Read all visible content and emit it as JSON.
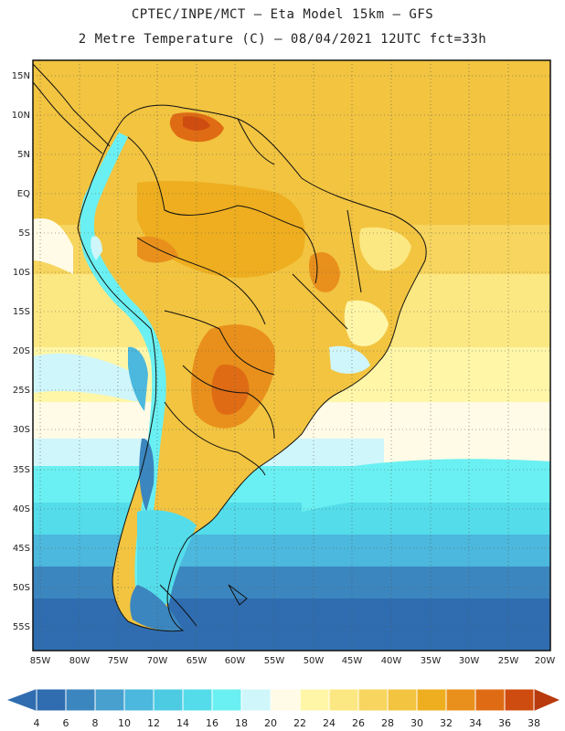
{
  "header": {
    "line1": "CPTEC/INPE/MCT –  Eta Model 15km – GFS",
    "line2": "2 Metre Temperature (C) – 08/04/2021 12UTC fct=33h"
  },
  "map": {
    "lat_labels": [
      "15N",
      "10N",
      "5N",
      "EQ",
      "5S",
      "10S",
      "15S",
      "20S",
      "25S",
      "30S",
      "35S",
      "40S",
      "45S",
      "50S",
      "55S"
    ],
    "lon_labels": [
      "85W",
      "80W",
      "75W",
      "70W",
      "65W",
      "60W",
      "55W",
      "50W",
      "45W",
      "40W",
      "35W",
      "30W",
      "25W",
      "20W"
    ]
  },
  "colorbar": {
    "ticks": [
      "4",
      "6",
      "8",
      "10",
      "12",
      "14",
      "16",
      "18",
      "20",
      "22",
      "24",
      "26",
      "28",
      "30",
      "32",
      "34",
      "36",
      "38"
    ],
    "colors": [
      "#2f6db0",
      "#3b86bf",
      "#48a0cf",
      "#4cb8dd",
      "#4ccbe3",
      "#54dcea",
      "#6af0f2",
      "#cff6fb",
      "#fffbe6",
      "#fff6a8",
      "#fce882",
      "#f7d55e",
      "#f2c440",
      "#eeae1f",
      "#e9901c",
      "#df6c14",
      "#cf4c10",
      "#b83a0d"
    ]
  }
}
